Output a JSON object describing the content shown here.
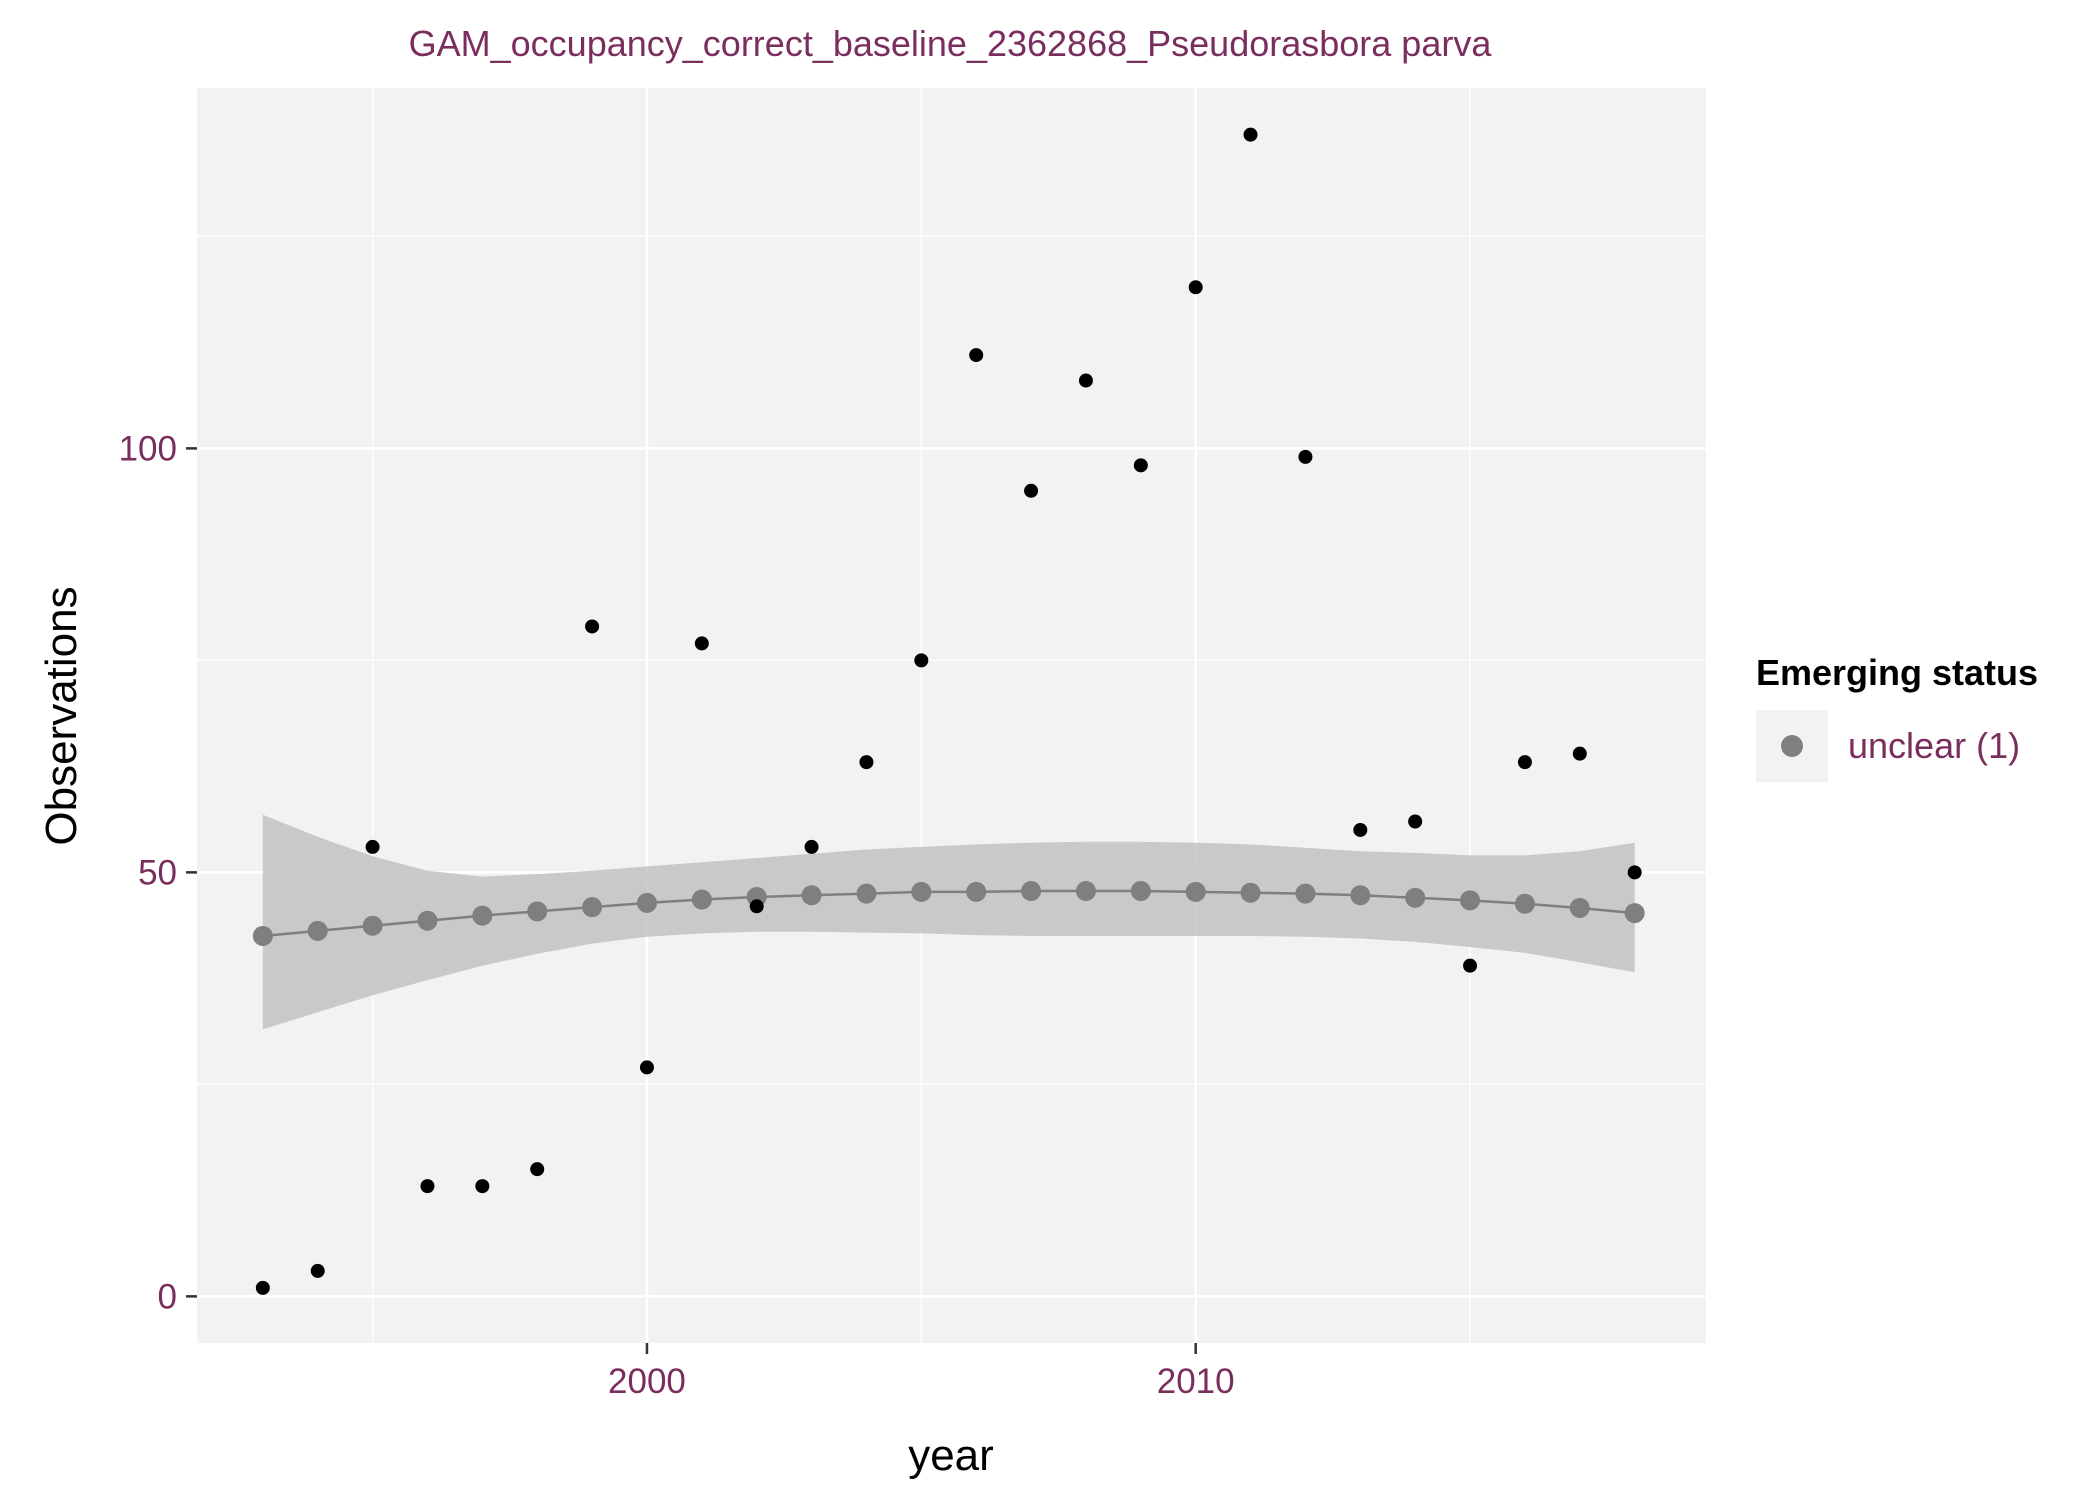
{
  "chart_data": {
    "type": "scatter",
    "title": "GAM_occupancy_correct_baseline_2362868_Pseudorasbora parva",
    "xlabel": "year",
    "ylabel": "Observations",
    "x_ticks": [
      2000,
      2010
    ],
    "y_ticks": [
      0,
      50,
      100
    ],
    "xlim": [
      1991.8,
      2019.3
    ],
    "ylim": [
      -5.5,
      142.5
    ],
    "grid": true,
    "legend": {
      "title": "Emerging status",
      "entries": [
        "unclear (1)"
      ],
      "position": "right"
    },
    "observed": {
      "x": [
        1993,
        1994,
        1995,
        1996,
        1997,
        1998,
        1999,
        2000,
        2001,
        2002,
        2003,
        2004,
        2005,
        2006,
        2007,
        2008,
        2009,
        2010,
        2011,
        2012,
        2013,
        2014,
        2015,
        2016,
        2017,
        2018
      ],
      "y": [
        1,
        3,
        53,
        13,
        13,
        15,
        79,
        27,
        77,
        46,
        53,
        63,
        75,
        111,
        95,
        108,
        98,
        119,
        137,
        99,
        55,
        56,
        39,
        63,
        64,
        50
      ]
    },
    "fitted": {
      "name": "unclear (1)",
      "x": [
        1993,
        1994,
        1995,
        1996,
        1997,
        1998,
        1999,
        2000,
        2001,
        2002,
        2003,
        2004,
        2005,
        2006,
        2007,
        2008,
        2009,
        2010,
        2011,
        2012,
        2013,
        2014,
        2015,
        2016,
        2017,
        2018
      ],
      "y": [
        42.5,
        43.1,
        43.7,
        44.3,
        44.9,
        45.4,
        45.9,
        46.4,
        46.8,
        47.1,
        47.3,
        47.5,
        47.7,
        47.7,
        47.8,
        47.8,
        47.8,
        47.7,
        47.6,
        47.5,
        47.3,
        47.0,
        46.7,
        46.3,
        45.8,
        45.2
      ],
      "ci_lower": [
        31.5,
        33.5,
        35.5,
        37.3,
        39.0,
        40.4,
        41.6,
        42.4,
        42.8,
        43.0,
        43.0,
        42.9,
        42.8,
        42.6,
        42.5,
        42.5,
        42.5,
        42.5,
        42.5,
        42.4,
        42.2,
        41.8,
        41.2,
        40.5,
        39.4,
        38.2
      ],
      "ci_upper": [
        56.8,
        54.2,
        51.9,
        50.2,
        49.5,
        49.8,
        50.2,
        50.7,
        51.2,
        51.7,
        52.2,
        52.7,
        53.0,
        53.3,
        53.5,
        53.6,
        53.6,
        53.5,
        53.3,
        52.9,
        52.5,
        52.3,
        52.0,
        52.0,
        52.5,
        53.5
      ]
    },
    "colors": {
      "panel": "#f2f2f2",
      "grid": "#ffffff",
      "observed_point": "#000000",
      "fitted": "#7f7f7f",
      "ribbon": "#bebebe",
      "label": "#7a2e5e"
    }
  }
}
